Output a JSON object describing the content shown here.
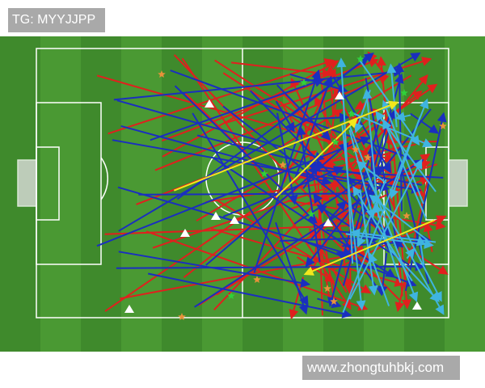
{
  "header": {
    "tag_text": "TG: MYYJJPP"
  },
  "footer": {
    "watermark_text": "www.zhongtuhbkj.com"
  },
  "pitch": {
    "grass_colors": [
      "#3f8a2c",
      "#4a9933"
    ],
    "line_color": "#ffffff",
    "pass_colors": {
      "red": "#e0201e",
      "blue": "#1a2fbf",
      "light_blue": "#3fb4e0",
      "yellow": "#f2e81c"
    },
    "marker_colors": {
      "star_orange": "#e8923a",
      "star_green": "#2fd13a",
      "triangle": "#ffffff"
    }
  }
}
